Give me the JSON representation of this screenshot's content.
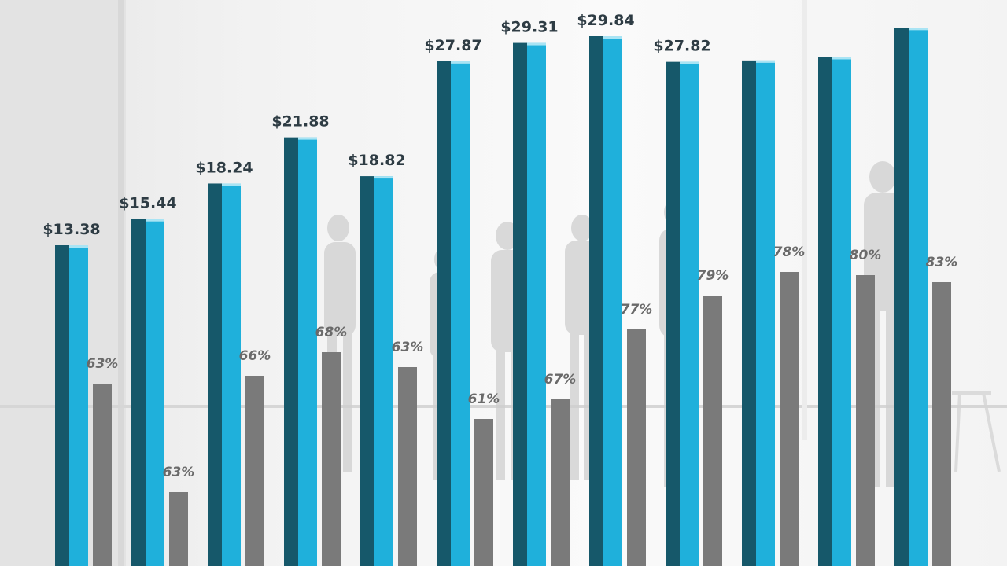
{
  "chart_data": {
    "type": "bar",
    "categories": [
      "",
      "",
      "",
      "",
      "",
      "",
      "",
      "",
      "",
      "",
      "",
      ""
    ],
    "series": [
      {
        "values": [
          13.38,
          15.44,
          18.24,
          21.88,
          18.82,
          27.87,
          29.31,
          29.84,
          27.82,
          27.93,
          28.2,
          30.5
        ],
        "value_labels": [
          "$13.38",
          "$15.44",
          "$18.24",
          "$21.88",
          "$18.82",
          "$27.87",
          "$29.31",
          "$29.84",
          "$27.82",
          "",
          "",
          ""
        ]
      },
      {
        "values": [
          63,
          63,
          66,
          68,
          63,
          61,
          67,
          77,
          79,
          78,
          80,
          83
        ],
        "value_labels": [
          "63%",
          "63%",
          "66%",
          "68%",
          "63%",
          "61%",
          "67%",
          "77%",
          "79%",
          "78%",
          "80%",
          "83%"
        ]
      }
    ],
    "title": "",
    "xlabel": "",
    "ylabel": "",
    "legend": "none",
    "grid": false,
    "colors": {
      "primary_front": "#1fb0db",
      "primary_side": "#16586a",
      "secondary": "#7a7a7a",
      "label_primary": "#2e3c44",
      "label_secondary": "#6a6a6a"
    }
  }
}
